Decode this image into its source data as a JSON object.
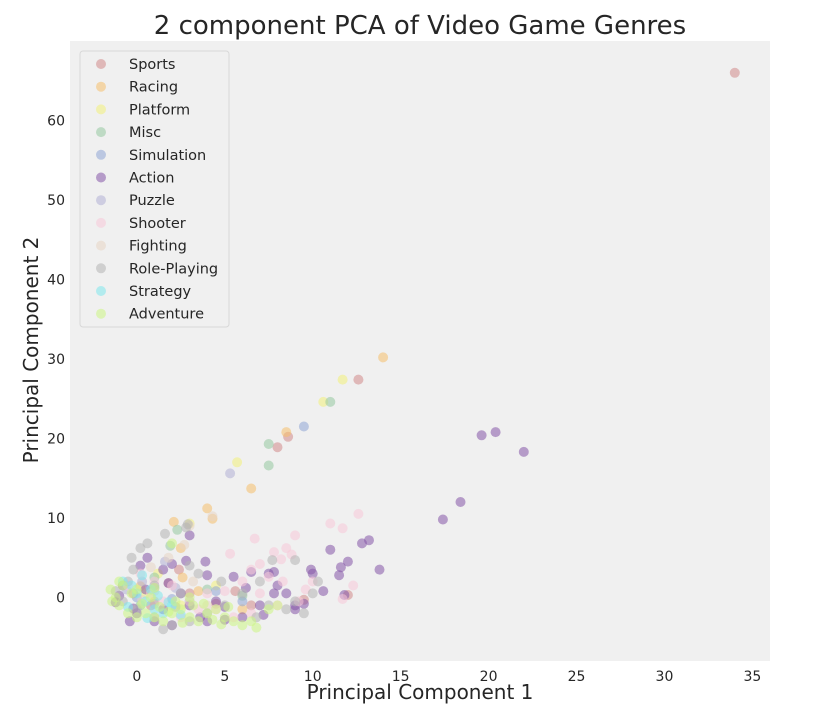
{
  "chart_data": {
    "type": "scatter",
    "title": "2 component PCA of Video Game Genres",
    "xlabel": "Principal Component 1",
    "ylabel": "Principal Component 2",
    "xlim": [
      -3.8,
      36
    ],
    "ylim": [
      -8,
      70
    ],
    "xticks": [
      0,
      5,
      10,
      15,
      20,
      25,
      30,
      35
    ],
    "yticks": [
      0,
      10,
      20,
      30,
      40,
      50,
      60
    ],
    "grid": false,
    "background": "#f0f0f0",
    "marker_alpha": 0.55,
    "legend": {
      "placement": "top-left"
    },
    "series": [
      {
        "name": "Sports",
        "color": "#d28a8a",
        "points": [
          [
            34.0,
            66.0
          ],
          [
            12.6,
            27.4
          ],
          [
            8.6,
            20.2
          ],
          [
            8.0,
            18.9
          ],
          [
            12.0,
            0.3
          ],
          [
            6.5,
            -1.0
          ],
          [
            3.0,
            0.5
          ],
          [
            1.8,
            1.8
          ],
          [
            0.8,
            -1.0
          ],
          [
            -0.2,
            0.5
          ],
          [
            4.5,
            -0.8
          ],
          [
            9.5,
            -0.3
          ],
          [
            2.4,
            3.5
          ],
          [
            5.6,
            0.8
          ]
        ]
      },
      {
        "name": "Racing",
        "color": "#f5c06b",
        "points": [
          [
            14.0,
            30.2
          ],
          [
            8.5,
            20.8
          ],
          [
            6.5,
            13.7
          ],
          [
            4.0,
            11.2
          ],
          [
            4.3,
            9.9
          ],
          [
            2.1,
            9.5
          ],
          [
            2.5,
            6.2
          ],
          [
            1.0,
            -0.5
          ],
          [
            3.5,
            0.8
          ],
          [
            6.0,
            -1.5
          ],
          [
            0.2,
            1.4
          ],
          [
            2.6,
            2.5
          ]
        ]
      },
      {
        "name": "Platform",
        "color": "#f2f07a",
        "points": [
          [
            11.7,
            27.4
          ],
          [
            10.6,
            24.6
          ],
          [
            5.7,
            17.0
          ],
          [
            3.0,
            9.3
          ],
          [
            1.2,
            3.0
          ],
          [
            2.5,
            -1.0
          ],
          [
            0.5,
            0.5
          ],
          [
            4.5,
            1.5
          ]
        ]
      },
      {
        "name": "Misc",
        "color": "#96c9a1",
        "points": [
          [
            11.0,
            24.6
          ],
          [
            7.5,
            19.3
          ],
          [
            7.5,
            16.6
          ],
          [
            2.3,
            8.5
          ],
          [
            1.9,
            6.5
          ],
          [
            1.0,
            2.5
          ],
          [
            3.0,
            -0.5
          ],
          [
            6.0,
            0.2
          ],
          [
            0.2,
            -1.0
          ],
          [
            4.0,
            1.0
          ]
        ]
      },
      {
        "name": "Simulation",
        "color": "#8fa6d6",
        "points": [
          [
            9.5,
            21.5
          ],
          [
            1.0,
            1.2
          ],
          [
            2.0,
            -0.2
          ],
          [
            4.5,
            0.8
          ],
          [
            0.0,
            0.0
          ],
          [
            6.0,
            -0.5
          ]
        ]
      },
      {
        "name": "Action",
        "color": "#8556a8",
        "points": [
          [
            19.6,
            20.4
          ],
          [
            20.4,
            20.8
          ],
          [
            22.0,
            18.3
          ],
          [
            18.4,
            12.0
          ],
          [
            17.4,
            9.8
          ],
          [
            13.2,
            7.2
          ],
          [
            12.8,
            6.8
          ],
          [
            11.0,
            6.0
          ],
          [
            12.0,
            4.5
          ],
          [
            11.6,
            3.8
          ],
          [
            13.8,
            3.5
          ],
          [
            11.5,
            2.8
          ],
          [
            9.9,
            3.5
          ],
          [
            10.0,
            3.0
          ],
          [
            10.6,
            0.8
          ],
          [
            11.8,
            0.3
          ],
          [
            7.5,
            3.0
          ],
          [
            7.8,
            3.2
          ],
          [
            6.5,
            3.2
          ],
          [
            3.9,
            4.5
          ],
          [
            5.5,
            2.6
          ],
          [
            4.0,
            2.8
          ],
          [
            2.8,
            4.6
          ],
          [
            3.0,
            7.8
          ],
          [
            9.0,
            -1.0
          ],
          [
            9.5,
            -0.8
          ],
          [
            9.0,
            -1.5
          ],
          [
            8.5,
            0.5
          ],
          [
            8.0,
            1.5
          ],
          [
            7.0,
            -1.0
          ],
          [
            6.0,
            -2.5
          ],
          [
            7.2,
            -2.2
          ],
          [
            5.0,
            -2.8
          ],
          [
            4.0,
            -3.0
          ],
          [
            2.0,
            -3.5
          ],
          [
            1.0,
            -3.0
          ],
          [
            -0.4,
            -3.0
          ],
          [
            0.0,
            -2.0
          ],
          [
            1.5,
            -1.5
          ],
          [
            3.0,
            -1.0
          ],
          [
            4.5,
            -0.5
          ],
          [
            2.5,
            0.5
          ],
          [
            0.5,
            1.0
          ],
          [
            -0.8,
            1.5
          ],
          [
            -1.0,
            0.2
          ],
          [
            0.2,
            4.0
          ],
          [
            0.6,
            5.0
          ],
          [
            1.5,
            3.5
          ],
          [
            2.0,
            4.2
          ],
          [
            6.2,
            1.2
          ],
          [
            7.8,
            0.5
          ],
          [
            5.0,
            -1.2
          ],
          [
            3.6,
            -2.5
          ],
          [
            -0.2,
            -1.4
          ],
          [
            -1.2,
            -0.6
          ],
          [
            1.8,
            1.8
          ]
        ]
      },
      {
        "name": "Puzzle",
        "color": "#b3b0d6",
        "points": [
          [
            5.3,
            15.6
          ],
          [
            1.6,
            4.5
          ],
          [
            0.3,
            2.0
          ],
          [
            -0.6,
            1.0
          ],
          [
            2.2,
            1.2
          ],
          [
            1.0,
            -0.8
          ]
        ]
      },
      {
        "name": "Shooter",
        "color": "#f7c8d8",
        "points": [
          [
            12.6,
            10.5
          ],
          [
            11.0,
            9.3
          ],
          [
            11.7,
            8.7
          ],
          [
            9.0,
            7.8
          ],
          [
            8.5,
            6.2
          ],
          [
            8.8,
            5.4
          ],
          [
            8.2,
            4.8
          ],
          [
            7.8,
            5.7
          ],
          [
            7.0,
            4.2
          ],
          [
            6.7,
            7.4
          ],
          [
            5.3,
            5.5
          ],
          [
            6.5,
            3.5
          ],
          [
            7.5,
            2.6
          ],
          [
            11.7,
            -0.2
          ],
          [
            10.0,
            2.0
          ],
          [
            9.6,
            1.0
          ],
          [
            9.2,
            -0.5
          ],
          [
            8.0,
            -1.0
          ],
          [
            7.0,
            0.5
          ],
          [
            6.0,
            2.0
          ],
          [
            5.0,
            0.8
          ],
          [
            4.0,
            0.5
          ],
          [
            3.0,
            -0.5
          ],
          [
            2.0,
            1.5
          ],
          [
            1.0,
            2.0
          ],
          [
            0.2,
            3.0
          ],
          [
            -0.5,
            1.5
          ],
          [
            4.5,
            -1.5
          ],
          [
            6.5,
            -2.0
          ],
          [
            5.5,
            -2.5
          ],
          [
            3.5,
            -1.5
          ],
          [
            2.5,
            -2.5
          ],
          [
            1.5,
            -0.5
          ],
          [
            0.8,
            0.5
          ],
          [
            12.3,
            1.5
          ],
          [
            8.3,
            2.0
          ]
        ]
      },
      {
        "name": "Fighting",
        "color": "#e8d5c4",
        "points": [
          [
            4.3,
            10.2
          ],
          [
            3.0,
            9.0
          ],
          [
            2.7,
            6.6
          ],
          [
            1.8,
            5.0
          ],
          [
            0.8,
            3.8
          ],
          [
            3.2,
            2.0
          ],
          [
            1.0,
            0.8
          ],
          [
            4.0,
            -1.0
          ],
          [
            0.3,
            -0.3
          ]
        ]
      },
      {
        "name": "Role-Playing",
        "color": "#b5b5b5",
        "points": [
          [
            2.9,
            9.2
          ],
          [
            2.8,
            8.8
          ],
          [
            1.6,
            8.0
          ],
          [
            0.6,
            6.8
          ],
          [
            0.2,
            6.2
          ],
          [
            -0.3,
            5.0
          ],
          [
            3.0,
            4.0
          ],
          [
            3.5,
            3.0
          ],
          [
            4.8,
            2.0
          ],
          [
            7.7,
            4.7
          ],
          [
            9.0,
            4.7
          ],
          [
            10.3,
            2.0
          ],
          [
            10.0,
            0.5
          ],
          [
            9.0,
            -0.5
          ],
          [
            8.5,
            -1.5
          ],
          [
            7.5,
            -1.0
          ],
          [
            6.0,
            0.5
          ],
          [
            5.0,
            -1.0
          ],
          [
            4.0,
            -2.0
          ],
          [
            3.0,
            -3.0
          ],
          [
            2.0,
            -3.5
          ],
          [
            1.5,
            -4.0
          ],
          [
            1.0,
            -2.5
          ],
          [
            0.0,
            -1.5
          ],
          [
            -0.8,
            -0.5
          ],
          [
            -1.2,
            0.8
          ],
          [
            -0.5,
            2.0
          ],
          [
            1.0,
            1.5
          ],
          [
            2.5,
            0.5
          ],
          [
            6.8,
            -2.5
          ],
          [
            9.5,
            -2.0
          ],
          [
            7.0,
            2.0
          ],
          [
            2.2,
            -1.2
          ],
          [
            -0.2,
            3.5
          ]
        ]
      },
      {
        "name": "Strategy",
        "color": "#7fe8ec",
        "points": [
          [
            -0.3,
            1.5
          ],
          [
            0.0,
            0.5
          ],
          [
            0.5,
            -0.5
          ],
          [
            1.0,
            -1.5
          ],
          [
            1.5,
            -2.0
          ],
          [
            2.0,
            -1.0
          ],
          [
            0.8,
            1.0
          ],
          [
            -0.8,
            2.0
          ],
          [
            0.3,
            2.8
          ],
          [
            1.2,
            0.2
          ],
          [
            -0.5,
            -1.2
          ],
          [
            2.5,
            -2.2
          ],
          [
            0.6,
            -2.6
          ],
          [
            1.8,
            -0.6
          ]
        ]
      },
      {
        "name": "Adventure",
        "color": "#ccf584",
        "points": [
          [
            -1.5,
            1.0
          ],
          [
            -1.2,
            0.0
          ],
          [
            -1.0,
            -1.0
          ],
          [
            -0.5,
            -2.0
          ],
          [
            0.0,
            -2.5
          ],
          [
            0.5,
            -2.0
          ],
          [
            1.0,
            -2.5
          ],
          [
            1.5,
            -3.0
          ],
          [
            2.0,
            -2.0
          ],
          [
            2.5,
            -1.5
          ],
          [
            3.0,
            -2.5
          ],
          [
            3.5,
            -3.0
          ],
          [
            4.0,
            -2.0
          ],
          [
            4.5,
            -1.5
          ],
          [
            5.0,
            -2.5
          ],
          [
            5.5,
            -3.0
          ],
          [
            6.0,
            -3.5
          ],
          [
            6.5,
            -3.0
          ],
          [
            6.8,
            -3.8
          ],
          [
            -0.8,
            1.5
          ],
          [
            -0.3,
            0.5
          ],
          [
            0.3,
            -0.8
          ],
          [
            0.8,
            0.0
          ],
          [
            1.3,
            -1.2
          ],
          [
            1.8,
            -1.8
          ],
          [
            2.2,
            -0.5
          ],
          [
            3.2,
            -1.0
          ],
          [
            3.8,
            -0.8
          ],
          [
            4.3,
            -2.8
          ],
          [
            5.2,
            -1.2
          ],
          [
            7.5,
            -1.5
          ],
          [
            8.0,
            -1.0
          ],
          [
            -1.4,
            -0.5
          ],
          [
            0.0,
            1.0
          ],
          [
            1.0,
            1.2
          ],
          [
            -1.0,
            2.0
          ],
          [
            2.0,
            6.8
          ],
          [
            2.6,
            -3.2
          ],
          [
            4.8,
            -3.4
          ],
          [
            3.0,
            0.0
          ]
        ]
      }
    ]
  }
}
